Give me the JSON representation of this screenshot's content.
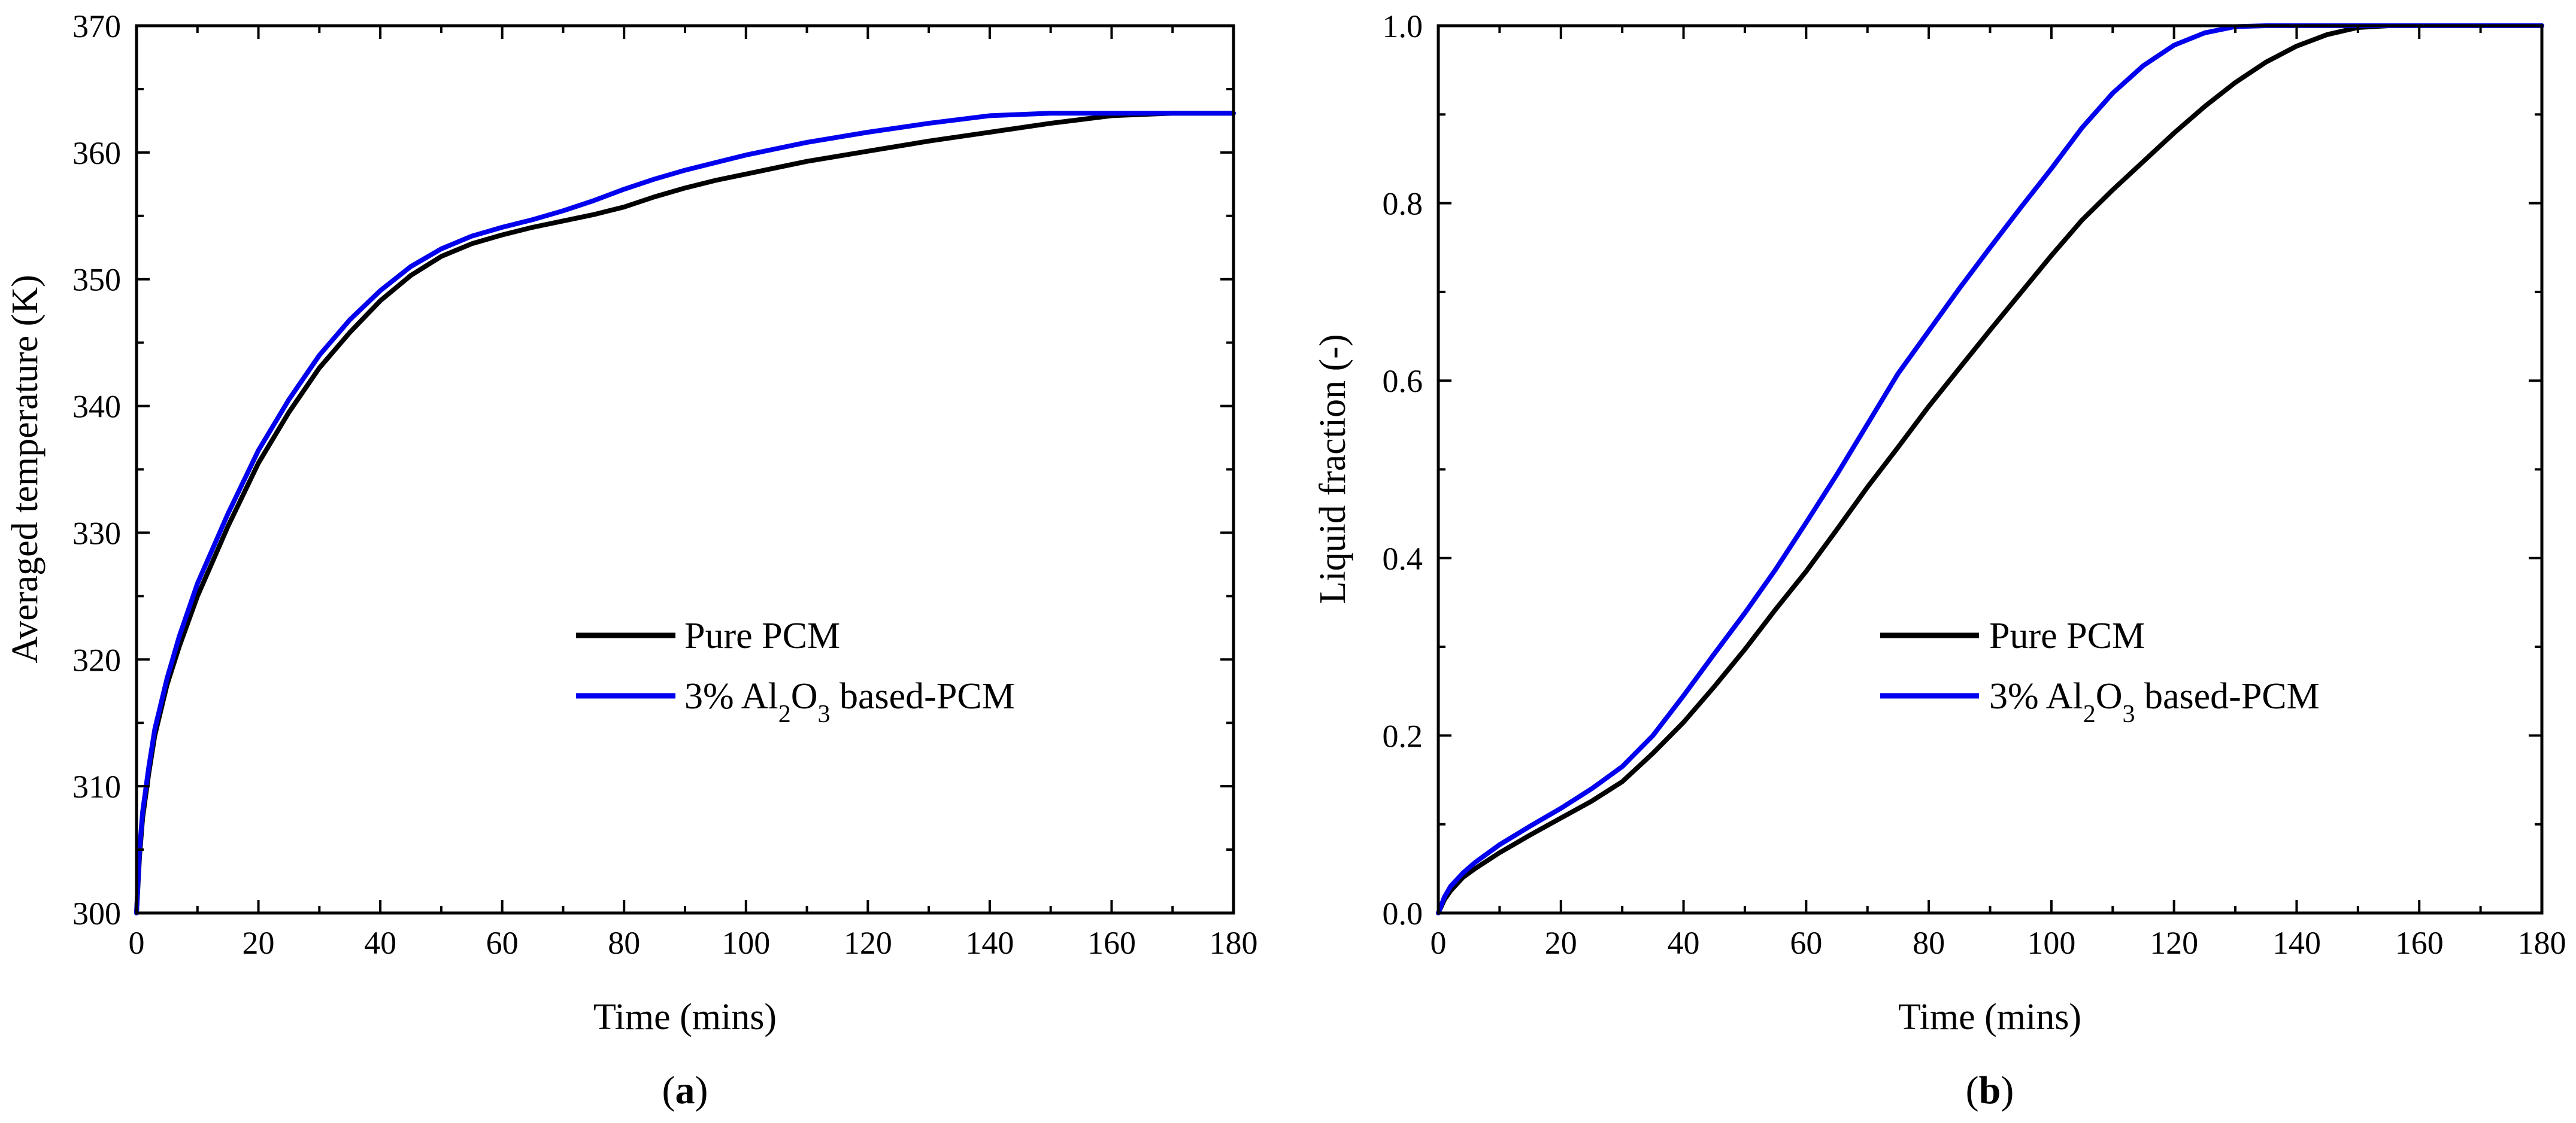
{
  "chart_data": [
    {
      "type": "line",
      "panel_label": {
        "open": "(",
        "letter": "a",
        "close": ")"
      },
      "xlabel": "Time (mins)",
      "ylabel": "Averaged temperature (K)",
      "xlim": [
        0,
        180
      ],
      "ylim": [
        300,
        370
      ],
      "xticks": [
        "0",
        "20",
        "40",
        "60",
        "80",
        "100",
        "120",
        "140",
        "160",
        "180"
      ],
      "yticks": [
        "300",
        "310",
        "320",
        "330",
        "340",
        "350",
        "360",
        "370"
      ],
      "xtick_values": [
        0,
        20,
        40,
        60,
        80,
        100,
        120,
        140,
        160,
        180
      ],
      "ytick_values": [
        300,
        310,
        320,
        330,
        340,
        350,
        360,
        370
      ],
      "legend_position": "center-right",
      "series": [
        {
          "name": "Pure PCM",
          "legend_pre": "Pure PCM",
          "color": "#000000",
          "x": [
            0,
            0.5,
            1,
            2,
            3,
            5,
            7,
            10,
            15,
            20,
            25,
            30,
            35,
            40,
            45,
            50,
            55,
            60,
            65,
            70,
            75,
            80,
            85,
            90,
            95,
            100,
            110,
            120,
            130,
            140,
            150,
            160,
            170,
            180
          ],
          "y": [
            300,
            304.5,
            307.5,
            311,
            314,
            318,
            321,
            325,
            330.5,
            335.5,
            339.5,
            343,
            345.8,
            348.3,
            350.3,
            351.8,
            352.8,
            353.5,
            354.1,
            354.6,
            355.1,
            355.7,
            356.5,
            357.2,
            357.8,
            358.3,
            359.3,
            360.1,
            360.9,
            361.6,
            362.3,
            362.9,
            363.1,
            363.1
          ]
        },
        {
          "name": "3% Al2O3 based-PCM",
          "legend_pre": "3% Al",
          "legend_sub1": "2",
          "legend_mid": "O",
          "legend_sub2": "3",
          "legend_post": " based-PCM",
          "color": "#0000ee",
          "x": [
            0,
            0.5,
            1,
            2,
            3,
            5,
            7,
            10,
            15,
            20,
            25,
            30,
            35,
            40,
            45,
            50,
            55,
            60,
            65,
            70,
            75,
            80,
            85,
            90,
            95,
            100,
            110,
            120,
            130,
            140,
            150,
            160,
            170,
            180
          ],
          "y": [
            300,
            305,
            308,
            311.5,
            314.5,
            318.5,
            321.8,
            326,
            331.5,
            336.5,
            340.5,
            344,
            346.8,
            349.1,
            351,
            352.4,
            353.4,
            354.1,
            354.7,
            355.4,
            356.2,
            357.1,
            357.9,
            358.6,
            359.2,
            359.8,
            360.8,
            361.6,
            362.3,
            362.9,
            363.1,
            363.1,
            363.1,
            363.1
          ]
        }
      ]
    },
    {
      "type": "line",
      "panel_label": {
        "open": "(",
        "letter": "b",
        "close": ")"
      },
      "xlabel": "Time (mins)",
      "ylabel": "Liquid fraction (-)",
      "xlim": [
        0,
        180
      ],
      "ylim": [
        0,
        1
      ],
      "xticks": [
        "0",
        "20",
        "40",
        "60",
        "80",
        "100",
        "120",
        "140",
        "160",
        "180"
      ],
      "yticks": [
        "0.0",
        "0.2",
        "0.4",
        "0.6",
        "0.8",
        "1.0"
      ],
      "xtick_values": [
        0,
        20,
        40,
        60,
        80,
        100,
        120,
        140,
        160,
        180
      ],
      "ytick_values": [
        0,
        0.2,
        0.4,
        0.6,
        0.8,
        1.0
      ],
      "legend_position": "center-right",
      "series": [
        {
          "name": "Pure PCM",
          "legend_pre": "Pure PCM",
          "color": "#000000",
          "x": [
            0,
            1,
            2,
            4,
            6,
            10,
            15,
            20,
            25,
            30,
            35,
            40,
            45,
            50,
            55,
            60,
            65,
            70,
            75,
            80,
            85,
            90,
            95,
            100,
            105,
            110,
            115,
            120,
            125,
            130,
            135,
            140,
            145,
            150,
            155,
            160,
            170,
            180
          ],
          "y": [
            0,
            0.015,
            0.025,
            0.04,
            0.05,
            0.068,
            0.088,
            0.107,
            0.126,
            0.148,
            0.18,
            0.215,
            0.255,
            0.297,
            0.342,
            0.385,
            0.432,
            0.48,
            0.525,
            0.571,
            0.614,
            0.657,
            0.699,
            0.741,
            0.781,
            0.815,
            0.847,
            0.879,
            0.909,
            0.936,
            0.959,
            0.977,
            0.99,
            0.998,
            1.0,
            1.0,
            1.0,
            1.0
          ]
        },
        {
          "name": "3% Al2O3 based-PCM",
          "legend_pre": "3% Al",
          "legend_sub1": "2",
          "legend_mid": "O",
          "legend_sub2": "3",
          "legend_post": " based-PCM",
          "color": "#0000ee",
          "x": [
            0,
            1,
            2,
            4,
            6,
            10,
            15,
            20,
            25,
            30,
            35,
            40,
            45,
            50,
            55,
            60,
            65,
            70,
            75,
            80,
            85,
            90,
            95,
            100,
            105,
            110,
            115,
            120,
            125,
            130,
            135,
            140,
            150,
            160,
            170,
            180
          ],
          "y": [
            0,
            0.018,
            0.03,
            0.045,
            0.057,
            0.077,
            0.098,
            0.118,
            0.14,
            0.165,
            0.2,
            0.245,
            0.292,
            0.338,
            0.387,
            0.44,
            0.494,
            0.551,
            0.608,
            0.656,
            0.704,
            0.75,
            0.795,
            0.839,
            0.885,
            0.924,
            0.955,
            0.978,
            0.992,
            0.999,
            1.0,
            1.0,
            1.0,
            1.0,
            1.0,
            1.0
          ]
        }
      ]
    }
  ]
}
